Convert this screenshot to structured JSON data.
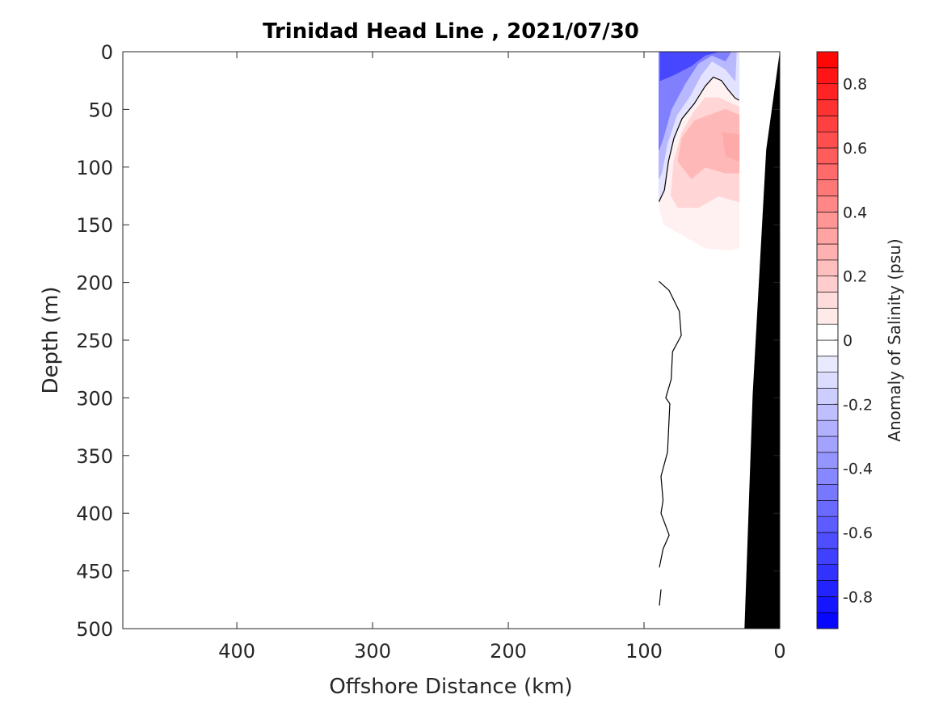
{
  "chart_data": {
    "type": "contourf",
    "title": "Trinidad Head Line , 2021/07/30",
    "xlabel": "Offshore Distance (km)",
    "ylabel": "Depth (m)",
    "xlim": [
      484,
      0
    ],
    "ylim": [
      500,
      0
    ],
    "xticks": [
      400,
      300,
      200,
      100,
      0
    ],
    "yticks": [
      0,
      50,
      100,
      150,
      200,
      250,
      300,
      350,
      400,
      450,
      500
    ],
    "colorbar": {
      "label": "Anomaly of Salinity (psu)",
      "range": [
        -0.9,
        0.9
      ],
      "step": 0.05,
      "ticks": [
        0.8,
        0.6,
        0.4,
        0.2,
        0,
        -0.2,
        -0.4,
        -0.6,
        -0.8
      ],
      "neg_color": "#0000ff",
      "pos_color": "#ff0000"
    },
    "filled_regions": [
      {
        "value": -0.1,
        "points": [
          [
            89,
            0
          ],
          [
            30,
            0
          ],
          [
            30,
            42
          ],
          [
            38,
            33
          ],
          [
            43,
            25
          ],
          [
            49,
            22
          ],
          [
            55,
            30
          ],
          [
            63,
            45
          ],
          [
            72,
            58
          ],
          [
            78,
            75
          ],
          [
            82,
            95
          ],
          [
            85,
            120
          ],
          [
            89,
            130
          ]
        ]
      },
      {
        "value": -0.25,
        "points": [
          [
            89,
            0
          ],
          [
            32,
            0
          ],
          [
            33,
            25
          ],
          [
            40,
            15
          ],
          [
            50,
            8
          ],
          [
            58,
            20
          ],
          [
            66,
            38
          ],
          [
            76,
            55
          ],
          [
            83,
            80
          ],
          [
            87,
            105
          ],
          [
            89,
            110
          ]
        ]
      },
      {
        "value": -0.45,
        "points": [
          [
            89,
            0
          ],
          [
            36,
            0
          ],
          [
            40,
            8
          ],
          [
            50,
            3
          ],
          [
            60,
            10
          ],
          [
            70,
            28
          ],
          [
            80,
            50
          ],
          [
            86,
            75
          ],
          [
            89,
            85
          ]
        ]
      },
      {
        "value": -0.65,
        "points": [
          [
            88,
            0
          ],
          [
            45,
            0
          ],
          [
            55,
            3
          ],
          [
            65,
            12
          ],
          [
            78,
            20
          ],
          [
            88,
            25
          ]
        ]
      },
      {
        "value": 0.05,
        "points": [
          [
            89,
            130
          ],
          [
            85,
            120
          ],
          [
            82,
            95
          ],
          [
            78,
            75
          ],
          [
            72,
            58
          ],
          [
            63,
            45
          ],
          [
            55,
            30
          ],
          [
            49,
            22
          ],
          [
            43,
            25
          ],
          [
            38,
            33
          ],
          [
            30,
            42
          ],
          [
            30,
            170
          ],
          [
            38,
            172
          ],
          [
            55,
            170
          ],
          [
            70,
            160
          ],
          [
            85,
            150
          ],
          [
            88,
            140
          ]
        ]
      },
      {
        "value": 0.15,
        "points": [
          [
            80,
            125
          ],
          [
            78,
            95
          ],
          [
            72,
            70
          ],
          [
            63,
            52
          ],
          [
            55,
            40
          ],
          [
            45,
            40
          ],
          [
            30,
            48
          ],
          [
            30,
            130
          ],
          [
            45,
            125
          ],
          [
            60,
            135
          ],
          [
            75,
            135
          ]
        ]
      },
      {
        "value": 0.25,
        "points": [
          [
            75,
            95
          ],
          [
            72,
            75
          ],
          [
            63,
            60
          ],
          [
            52,
            55
          ],
          [
            40,
            50
          ],
          [
            30,
            55
          ],
          [
            30,
            105
          ],
          [
            40,
            105
          ],
          [
            55,
            100
          ],
          [
            65,
            110
          ]
        ]
      },
      {
        "value": 0.3,
        "points": [
          [
            42,
            70
          ],
          [
            30,
            72
          ],
          [
            30,
            95
          ],
          [
            40,
            90
          ]
        ]
      }
    ],
    "zero_contours": [
      [
        [
          89,
          130
        ],
        [
          85,
          120
        ],
        [
          82,
          95
        ],
        [
          78,
          75
        ],
        [
          72,
          58
        ],
        [
          63,
          45
        ],
        [
          55,
          30
        ],
        [
          49,
          22
        ],
        [
          43,
          25
        ],
        [
          38,
          33
        ],
        [
          33,
          40
        ],
        [
          30,
          42
        ]
      ],
      [
        [
          89,
          199
        ],
        [
          81.5,
          207
        ],
        [
          74,
          225
        ],
        [
          72.6,
          246
        ],
        [
          79,
          260
        ],
        [
          80,
          284
        ],
        [
          84,
          300
        ],
        [
          81,
          305
        ],
        [
          82.7,
          347
        ],
        [
          87.5,
          368
        ],
        [
          86,
          389
        ],
        [
          87.5,
          400
        ],
        [
          81.5,
          419
        ],
        [
          86,
          431
        ],
        [
          88.7,
          447
        ]
      ],
      [
        [
          87.5,
          466
        ],
        [
          88.7,
          480
        ]
      ]
    ],
    "bathymetry": [
      [
        0,
        0
      ],
      [
        10,
        85
      ],
      [
        20,
        298
      ],
      [
        26,
        500
      ],
      [
        0,
        500
      ]
    ]
  }
}
